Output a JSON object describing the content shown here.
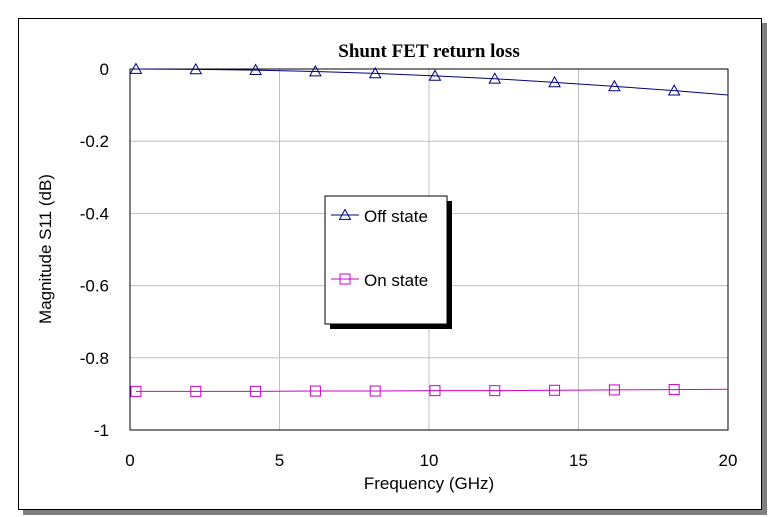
{
  "chart_data": {
    "type": "line",
    "title": "Shunt FET return loss",
    "xlabel": "Frequency (GHz)",
    "ylabel": "Magnitude S11 (dB)",
    "xlim": [
      0,
      20
    ],
    "ylim": [
      -1,
      0
    ],
    "xticks": [
      0,
      5,
      10,
      15,
      20
    ],
    "yticks": [
      0,
      -0.2,
      -0.4,
      -0.6,
      -0.8,
      -1
    ],
    "grid": true,
    "legend_position": "center",
    "series": [
      {
        "name": "Off state",
        "color": "#000080",
        "marker": "triangle",
        "x": [
          0.2,
          2.2,
          4.2,
          6.2,
          8.2,
          10.2,
          12.2,
          14.2,
          16.2,
          18.2,
          20
        ],
        "y": [
          0.0,
          -0.001,
          -0.003,
          -0.007,
          -0.012,
          -0.019,
          -0.027,
          -0.037,
          -0.048,
          -0.06,
          -0.072
        ]
      },
      {
        "name": "On state",
        "color": "#CC00CC",
        "marker": "square",
        "x": [
          0.2,
          2.2,
          4.2,
          6.2,
          8.2,
          10.2,
          12.2,
          14.2,
          16.2,
          18.2,
          20
        ],
        "y": [
          -0.893,
          -0.893,
          -0.893,
          -0.892,
          -0.892,
          -0.891,
          -0.891,
          -0.89,
          -0.889,
          -0.888,
          -0.887
        ]
      }
    ]
  }
}
